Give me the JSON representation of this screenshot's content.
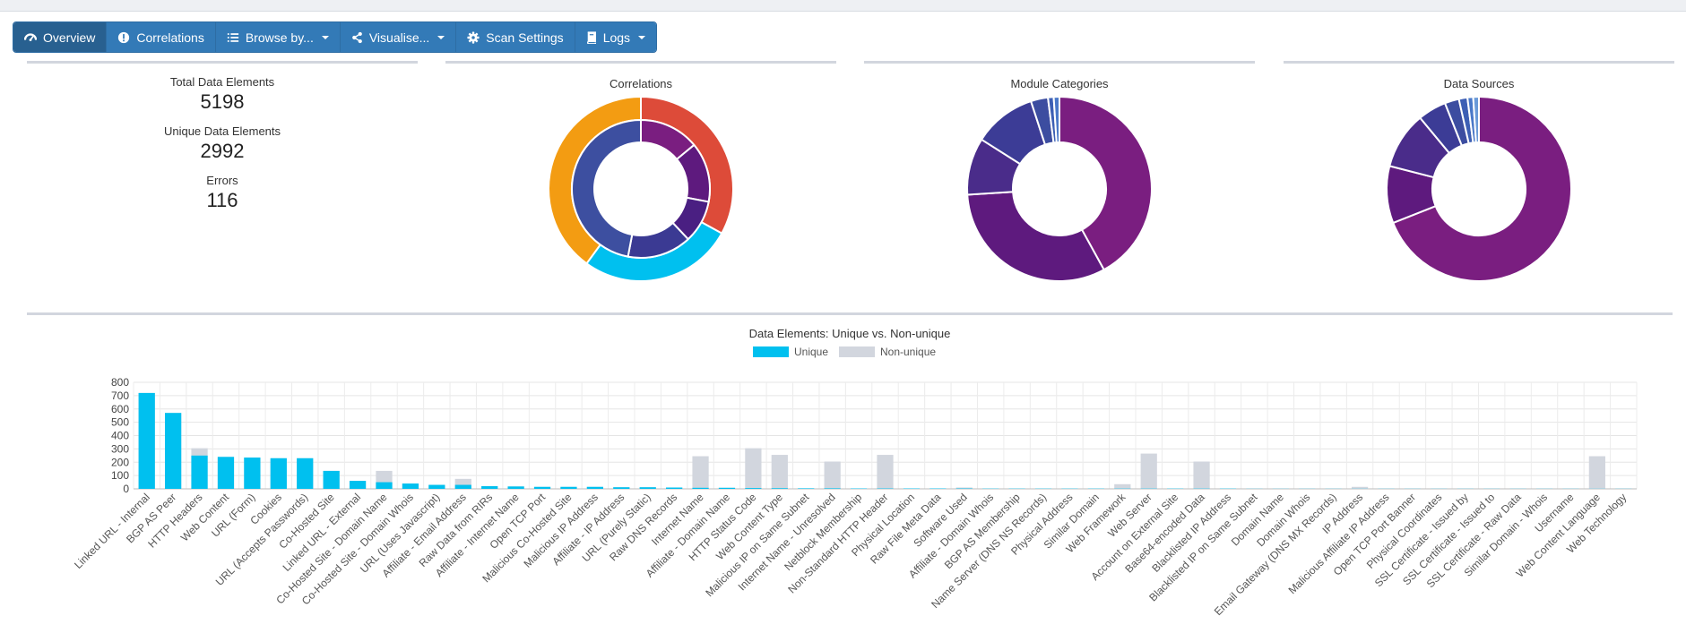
{
  "nav": {
    "items": [
      {
        "label": "Overview",
        "icon": "dashboard-icon",
        "dropdown": false,
        "active": true
      },
      {
        "label": "Correlations",
        "icon": "exclamation-circle-icon",
        "dropdown": false,
        "active": false
      },
      {
        "label": "Browse by...",
        "icon": "list-icon",
        "dropdown": true,
        "active": false
      },
      {
        "label": "Visualise...",
        "icon": "share-icon",
        "dropdown": true,
        "active": false
      },
      {
        "label": "Scan Settings",
        "icon": "gear-icon",
        "dropdown": false,
        "active": false
      },
      {
        "label": "Logs",
        "icon": "book-icon",
        "dropdown": true,
        "active": false
      }
    ]
  },
  "summary": {
    "total_label": "Total Data Elements",
    "total_value": "5198",
    "unique_label": "Unique Data Elements",
    "unique_value": "2992",
    "errors_label": "Errors",
    "errors_value": "116"
  },
  "panels": {
    "correlations": "Correlations",
    "module_categories": "Module Categories",
    "data_sources": "Data Sources"
  },
  "colors": {
    "unique": "#00c0ef",
    "nonunique": "#d2d6de",
    "primary": "#337ab7",
    "red": "#dd4b39",
    "cyan": "#00c0ef",
    "orange": "#f39c12",
    "purple": "#7a1e80",
    "indigo": "#3c3c96",
    "blue": "#3c5fb4"
  },
  "donuts": {
    "correlations_outer": [
      {
        "value": 33,
        "color": "#dd4b39"
      },
      {
        "value": 27,
        "color": "#00c0ef"
      },
      {
        "value": 40,
        "color": "#f39c12"
      }
    ],
    "correlations_inner": [
      {
        "value": 14,
        "color": "#7a1e80"
      },
      {
        "value": 14,
        "color": "#5e1a7e"
      },
      {
        "value": 10,
        "color": "#4a1f82"
      },
      {
        "value": 15,
        "color": "#3b3a93"
      },
      {
        "value": 47,
        "color": "#3d4fa0"
      }
    ],
    "module_categories": [
      {
        "value": 42,
        "color": "#7a1e80"
      },
      {
        "value": 32,
        "color": "#5e1a7e"
      },
      {
        "value": 10,
        "color": "#4a2c8a"
      },
      {
        "value": 11,
        "color": "#3c3c96"
      },
      {
        "value": 3,
        "color": "#3c4da0"
      },
      {
        "value": 1,
        "color": "#3d5fb4"
      },
      {
        "value": 1,
        "color": "#4a78c8"
      }
    ],
    "data_sources": [
      {
        "value": 69,
        "color": "#7a1e80"
      },
      {
        "value": 10,
        "color": "#5e1a7e"
      },
      {
        "value": 10,
        "color": "#4a2c8a"
      },
      {
        "value": 5,
        "color": "#3c3c96"
      },
      {
        "value": 2.5,
        "color": "#3c4da0"
      },
      {
        "value": 1.5,
        "color": "#3d5fb4"
      },
      {
        "value": 1,
        "color": "#4a78c8"
      },
      {
        "value": 1,
        "color": "#6a9ad8"
      }
    ]
  },
  "chart_data": {
    "type": "bar",
    "title": "Data Elements: Unique vs. Non-unique",
    "legend": "top",
    "ylim": [
      0,
      800
    ],
    "yticks": [
      0,
      100,
      200,
      300,
      400,
      500,
      600,
      700,
      800
    ],
    "grid": true,
    "categories": [
      "Linked URL - Internal",
      "BGP AS Peer",
      "HTTP Headers",
      "Web Content",
      "URL (Form)",
      "Cookies",
      "URL (Accepts Passwords)",
      "Co-Hosted Site",
      "Linked URL - External",
      "Co-Hosted Site - Domain Name",
      "Co-Hosted Site - Domain Whois",
      "URL (Uses Javascript)",
      "Affiliate - Email Address",
      "Raw Data from RIRs",
      "Affiliate - Internet Name",
      "Open TCP Port",
      "Malicious Co-Hosted Site",
      "Malicious IP Address",
      "Affiliate - IP Address",
      "URL (Purely Static)",
      "Raw DNS Records",
      "Internet Name",
      "Affiliate - Domain Name",
      "HTTP Status Code",
      "Web Content Type",
      "Malicious IP on Same Subnet",
      "Internet Name - Unresolved",
      "Netblock Membership",
      "Non-Standard HTTP Header",
      "Physical Location",
      "Raw File Meta Data",
      "Software Used",
      "Affiliate - Domain Whois",
      "BGP AS Membership",
      "Name Server (DNS NS Records)",
      "Physical Address",
      "Similar Domain",
      "Web Framework",
      "Web Server",
      "Account on External Site",
      "Base64-encoded Data",
      "Blacklisted IP Address",
      "Blacklisted IP on Same Subnet",
      "Domain Name",
      "Domain Whois",
      "Email Gateway (DNS MX Records)",
      "IP Address",
      "Malicious Affiliate IP Address",
      "Open TCP Port Banner",
      "Physical Coordinates",
      "SSL Certificate - Issued by",
      "SSL Certificate - Issued to",
      "SSL Certificate - Raw Data",
      "Similar Domain - Whois",
      "Username",
      "Web Content Language",
      "Web Technology"
    ],
    "series": [
      {
        "name": "Unique",
        "values": [
          720,
          570,
          250,
          240,
          235,
          230,
          230,
          135,
          60,
          50,
          40,
          30,
          30,
          20,
          18,
          15,
          15,
          15,
          12,
          12,
          10,
          8,
          8,
          6,
          5,
          4,
          4,
          3,
          3,
          3,
          3,
          3,
          2,
          2,
          2,
          2,
          2,
          2,
          2,
          2,
          2,
          2,
          1,
          1,
          1,
          1,
          1,
          1,
          1,
          1,
          1,
          1,
          1,
          1,
          1,
          1,
          1
        ]
      },
      {
        "name": "Non-unique",
        "values": [
          720,
          570,
          305,
          240,
          235,
          230,
          230,
          135,
          60,
          135,
          40,
          30,
          75,
          20,
          18,
          15,
          15,
          15,
          12,
          12,
          10,
          245,
          8,
          305,
          255,
          4,
          205,
          3,
          255,
          3,
          3,
          10,
          2,
          2,
          2,
          2,
          2,
          35,
          265,
          2,
          205,
          2,
          1,
          1,
          1,
          1,
          15,
          1,
          1,
          1,
          1,
          1,
          1,
          1,
          1,
          245,
          1
        ]
      }
    ]
  }
}
